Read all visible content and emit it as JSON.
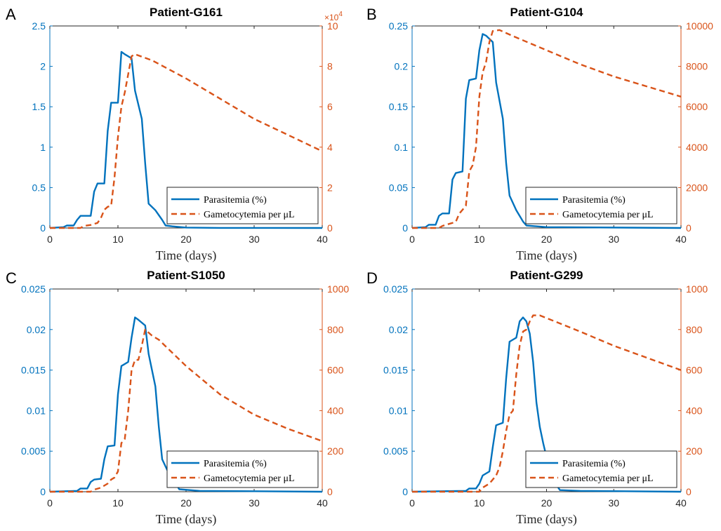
{
  "chart_data": [
    {
      "letter": "A",
      "title": "Patient-G161",
      "type": "line",
      "xlabel": "Time (days)",
      "xlim": [
        0,
        40
      ],
      "x_ticks": [
        "0",
        "10",
        "20",
        "30",
        "40"
      ],
      "left_axis": {
        "ylim": [
          0,
          2.5
        ],
        "ticks": [
          "0",
          "0.5",
          "1",
          "1.5",
          "2",
          "2.5"
        ]
      },
      "right_axis": {
        "ylim": [
          0,
          100000
        ],
        "ticks": [
          "0",
          "2",
          "4",
          "6",
          "8",
          "10"
        ],
        "exponent_label": "×10",
        "exponent_value": "4"
      },
      "legend": {
        "position": "bottom-right",
        "entries": [
          "Parasitemia (%)",
          "Gametocytemia per μL"
        ]
      },
      "series": [
        {
          "name": "Parasitemia (%)",
          "axis": "left",
          "color": "#0072BD",
          "style": "solid",
          "points": [
            [
              0,
              0
            ],
            [
              2,
              0.01
            ],
            [
              2.5,
              0.03
            ],
            [
              3.5,
              0.03
            ],
            [
              4,
              0.1
            ],
            [
              4.5,
              0.15
            ],
            [
              6,
              0.15
            ],
            [
              6.5,
              0.45
            ],
            [
              7,
              0.55
            ],
            [
              8,
              0.55
            ],
            [
              8.5,
              1.2
            ],
            [
              9,
              1.55
            ],
            [
              10,
              1.55
            ],
            [
              10.5,
              2.18
            ],
            [
              11,
              2.15
            ],
            [
              12,
              2.1
            ],
            [
              12.5,
              1.7
            ],
            [
              13.5,
              1.35
            ],
            [
              14,
              0.8
            ],
            [
              14.5,
              0.3
            ],
            [
              15.5,
              0.22
            ],
            [
              16.5,
              0.1
            ],
            [
              17,
              0.03
            ],
            [
              18,
              0.02
            ],
            [
              20,
              0.005
            ],
            [
              25,
              0.001
            ],
            [
              40,
              0
            ]
          ]
        },
        {
          "name": "Gametocytemia per μL",
          "axis": "right",
          "color": "#D95319",
          "style": "dashed",
          "points": [
            [
              0,
              0
            ],
            [
              4.5,
              0
            ],
            [
              5,
              1000
            ],
            [
              6,
              1500
            ],
            [
              7,
              2500
            ],
            [
              7.5,
              5000
            ],
            [
              8,
              9000
            ],
            [
              8.5,
              10500
            ],
            [
              9,
              11000
            ],
            [
              9.5,
              25000
            ],
            [
              10,
              45000
            ],
            [
              10.5,
              60000
            ],
            [
              11,
              67000
            ],
            [
              12,
              85000
            ],
            [
              12.5,
              86000
            ],
            [
              15,
              83000
            ],
            [
              20,
              74000
            ],
            [
              25,
              64000
            ],
            [
              30,
              54000
            ],
            [
              35,
              46000
            ],
            [
              40,
              38000
            ]
          ]
        }
      ]
    },
    {
      "letter": "B",
      "title": "Patient-G104",
      "type": "line",
      "xlabel": "Time (days)",
      "xlim": [
        0,
        40
      ],
      "x_ticks": [
        "0",
        "10",
        "20",
        "30",
        "40"
      ],
      "left_axis": {
        "ylim": [
          0,
          0.25
        ],
        "ticks": [
          "0",
          "0.05",
          "0.1",
          "0.15",
          "0.2",
          "0.25"
        ]
      },
      "right_axis": {
        "ylim": [
          0,
          10000
        ],
        "ticks": [
          "0",
          "2000",
          "4000",
          "6000",
          "8000",
          "10000"
        ]
      },
      "legend": {
        "position": "bottom-right",
        "entries": [
          "Parasitemia (%)",
          "Gametocytemia per μL"
        ]
      },
      "series": [
        {
          "name": "Parasitemia (%)",
          "axis": "left",
          "color": "#0072BD",
          "style": "solid",
          "points": [
            [
              0,
              0
            ],
            [
              2,
              0.001
            ],
            [
              2.5,
              0.004
            ],
            [
              3.5,
              0.004
            ],
            [
              4,
              0.015
            ],
            [
              4.5,
              0.018
            ],
            [
              5.5,
              0.018
            ],
            [
              6,
              0.06
            ],
            [
              6.5,
              0.068
            ],
            [
              7.5,
              0.07
            ],
            [
              8,
              0.16
            ],
            [
              8.5,
              0.183
            ],
            [
              9.5,
              0.185
            ],
            [
              10,
              0.22
            ],
            [
              10.5,
              0.24
            ],
            [
              11,
              0.238
            ],
            [
              12,
              0.23
            ],
            [
              12.5,
              0.18
            ],
            [
              13.5,
              0.135
            ],
            [
              14,
              0.08
            ],
            [
              14.5,
              0.04
            ],
            [
              15.5,
              0.022
            ],
            [
              16.5,
              0.008
            ],
            [
              17,
              0.003
            ],
            [
              20,
              0.001
            ],
            [
              40,
              0
            ]
          ]
        },
        {
          "name": "Gametocytemia per μL",
          "axis": "right",
          "color": "#D95319",
          "style": "dashed",
          "points": [
            [
              0,
              0
            ],
            [
              4,
              0
            ],
            [
              4.5,
              100
            ],
            [
              5.5,
              200
            ],
            [
              6.5,
              300
            ],
            [
              7,
              700
            ],
            [
              7.5,
              900
            ],
            [
              8,
              1100
            ],
            [
              8.5,
              2800
            ],
            [
              9,
              3100
            ],
            [
              9.5,
              4000
            ],
            [
              10,
              6500
            ],
            [
              10.5,
              7700
            ],
            [
              11,
              8200
            ],
            [
              11.5,
              9200
            ],
            [
              12,
              9750
            ],
            [
              13,
              9800
            ],
            [
              15,
              9500
            ],
            [
              20,
              8800
            ],
            [
              25,
              8100
            ],
            [
              30,
              7500
            ],
            [
              35,
              7000
            ],
            [
              40,
              6500
            ]
          ]
        }
      ]
    },
    {
      "letter": "C",
      "title": "Patient-S1050",
      "type": "line",
      "xlabel": "Time (days)",
      "xlim": [
        0,
        40
      ],
      "x_ticks": [
        "0",
        "10",
        "20",
        "30",
        "40"
      ],
      "left_axis": {
        "ylim": [
          0,
          0.025
        ],
        "ticks": [
          "0",
          "0.005",
          "0.01",
          "0.015",
          "0.02",
          "0.025"
        ]
      },
      "right_axis": {
        "ylim": [
          0,
          1000
        ],
        "ticks": [
          "0",
          "200",
          "400",
          "600",
          "800",
          "1000"
        ]
      },
      "legend": {
        "position": "bottom-right",
        "entries": [
          "Parasitemia (%)",
          "Gametocytemia per μL"
        ]
      },
      "series": [
        {
          "name": "Parasitemia (%)",
          "axis": "left",
          "color": "#0072BD",
          "style": "solid",
          "points": [
            [
              0,
              0
            ],
            [
              4,
              0.0001
            ],
            [
              4.5,
              0.0004
            ],
            [
              5.5,
              0.0004
            ],
            [
              6,
              0.0012
            ],
            [
              6.5,
              0.0015
            ],
            [
              7.5,
              0.0016
            ],
            [
              8,
              0.004
            ],
            [
              8.5,
              0.0056
            ],
            [
              9.5,
              0.0057
            ],
            [
              10,
              0.012
            ],
            [
              10.5,
              0.0155
            ],
            [
              11.5,
              0.016
            ],
            [
              12,
              0.019
            ],
            [
              12.5,
              0.0215
            ],
            [
              13,
              0.0212
            ],
            [
              14,
              0.0205
            ],
            [
              14.5,
              0.017
            ],
            [
              15.5,
              0.013
            ],
            [
              16,
              0.008
            ],
            [
              16.5,
              0.004
            ],
            [
              17.5,
              0.0022
            ],
            [
              18.5,
              0.001
            ],
            [
              19,
              0.0003
            ],
            [
              22,
              0.0001
            ],
            [
              40,
              0
            ]
          ]
        },
        {
          "name": "Gametocytemia per μL",
          "axis": "right",
          "color": "#D95319",
          "style": "dashed",
          "points": [
            [
              0,
              0
            ],
            [
              6,
              0
            ],
            [
              6.5,
              10
            ],
            [
              7.5,
              20
            ],
            [
              8.5,
              40
            ],
            [
              9,
              60
            ],
            [
              9.5,
              70
            ],
            [
              10,
              100
            ],
            [
              10.5,
              240
            ],
            [
              11,
              260
            ],
            [
              11.5,
              400
            ],
            [
              12,
              600
            ],
            [
              12.5,
              650
            ],
            [
              13,
              650
            ],
            [
              13.5,
              720
            ],
            [
              14,
              800
            ],
            [
              15,
              770
            ],
            [
              16,
              750
            ],
            [
              20,
              620
            ],
            [
              25,
              480
            ],
            [
              30,
              380
            ],
            [
              35,
              310
            ],
            [
              40,
              250
            ]
          ]
        }
      ]
    },
    {
      "letter": "D",
      "title": "Patient-G299",
      "type": "line",
      "xlabel": "Time (days)",
      "xlim": [
        0,
        40
      ],
      "x_ticks": [
        "0",
        "10",
        "20",
        "30",
        "40"
      ],
      "left_axis": {
        "ylim": [
          0,
          0.025
        ],
        "ticks": [
          "0",
          "0.005",
          "0.01",
          "0.015",
          "0.02",
          "0.025"
        ]
      },
      "right_axis": {
        "ylim": [
          0,
          1000
        ],
        "ticks": [
          "0",
          "200",
          "400",
          "600",
          "800",
          "1000"
        ]
      },
      "legend": {
        "position": "bottom-right",
        "entries": [
          "Parasitemia (%)",
          "Gametocytemia per μL"
        ]
      },
      "series": [
        {
          "name": "Parasitemia (%)",
          "axis": "left",
          "color": "#0072BD",
          "style": "solid",
          "points": [
            [
              0,
              0
            ],
            [
              8,
              0.0001
            ],
            [
              8.5,
              0.0004
            ],
            [
              9.5,
              0.0004
            ],
            [
              10,
              0.001
            ],
            [
              10.5,
              0.002
            ],
            [
              11.5,
              0.0025
            ],
            [
              12,
              0.0055
            ],
            [
              12.5,
              0.0082
            ],
            [
              13.5,
              0.0085
            ],
            [
              14,
              0.014
            ],
            [
              14.5,
              0.0185
            ],
            [
              15.5,
              0.019
            ],
            [
              16,
              0.021
            ],
            [
              16.5,
              0.0215
            ],
            [
              17,
              0.021
            ],
            [
              17.5,
              0.0195
            ],
            [
              18,
              0.016
            ],
            [
              18.5,
              0.011
            ],
            [
              19,
              0.008
            ],
            [
              19.5,
              0.006
            ],
            [
              20.5,
              0.0025
            ],
            [
              21.5,
              0.0008
            ],
            [
              22,
              0.0002
            ],
            [
              25,
              0.0001
            ],
            [
              40,
              0
            ]
          ]
        },
        {
          "name": "Gametocytemia per μL",
          "axis": "right",
          "color": "#D95319",
          "style": "dashed",
          "points": [
            [
              0,
              0
            ],
            [
              10,
              0
            ],
            [
              10.5,
              20
            ],
            [
              11.5,
              40
            ],
            [
              12.5,
              80
            ],
            [
              13,
              120
            ],
            [
              13.5,
              200
            ],
            [
              14,
              300
            ],
            [
              14.5,
              380
            ],
            [
              15,
              400
            ],
            [
              15.5,
              580
            ],
            [
              16,
              720
            ],
            [
              16.5,
              790
            ],
            [
              17,
              800
            ],
            [
              17.5,
              840
            ],
            [
              18,
              870
            ],
            [
              19,
              870
            ],
            [
              22,
              830
            ],
            [
              25,
              790
            ],
            [
              30,
              720
            ],
            [
              35,
              660
            ],
            [
              40,
              600
            ]
          ]
        }
      ]
    }
  ]
}
